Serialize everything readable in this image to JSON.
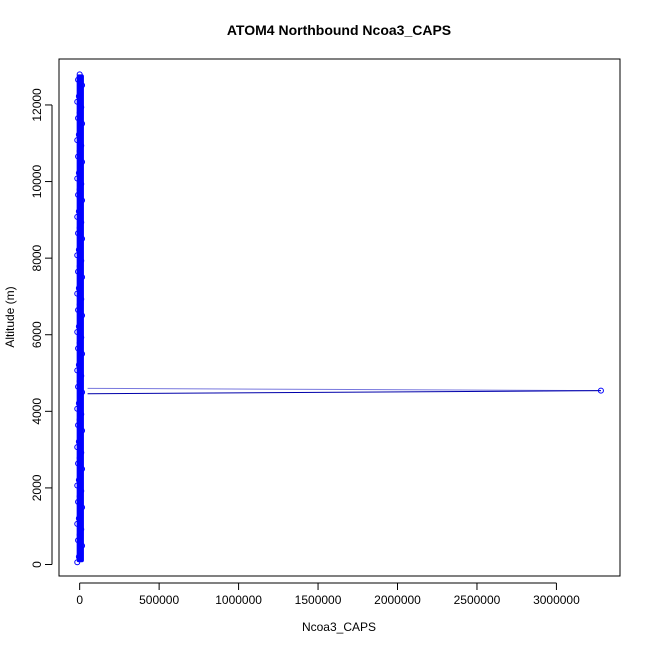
{
  "chart_data": {
    "type": "scatter",
    "title": "ATOM4 Northbound Ncoa3_CAPS",
    "xlabel": "Ncoa3_CAPS",
    "ylabel": "Altitude (m)",
    "xlim": [
      -130000,
      3400000
    ],
    "ylim": [
      -300,
      13200
    ],
    "x_ticks": [
      0,
      500000,
      1000000,
      1500000,
      2000000,
      2500000,
      3000000
    ],
    "x_tick_labels": [
      "0",
      "500000",
      "1000000",
      "1500000",
      "2000000",
      "2500000",
      "3000000"
    ],
    "y_ticks": [
      0,
      2000,
      4000,
      6000,
      8000,
      10000,
      12000
    ],
    "y_tick_labels": [
      "0",
      "2000",
      "4000",
      "6000",
      "8000",
      "10000",
      "12000"
    ],
    "grid": false,
    "series": [
      {
        "color": "#0000ff",
        "dense_band": {
          "x_range": [
            0,
            8000
          ],
          "y_range": [
            60,
            12800
          ]
        },
        "points": [
          {
            "x": 3280000,
            "y": 4540
          }
        ],
        "line_segments": [
          {
            "x": [
              50000,
              3280000
            ],
            "y": [
              4600,
              4540
            ],
            "color": "#7777dd"
          },
          {
            "x": [
              50000,
              3280000
            ],
            "y": [
              4460,
              4540
            ],
            "color": "#0000aa"
          }
        ]
      }
    ]
  }
}
